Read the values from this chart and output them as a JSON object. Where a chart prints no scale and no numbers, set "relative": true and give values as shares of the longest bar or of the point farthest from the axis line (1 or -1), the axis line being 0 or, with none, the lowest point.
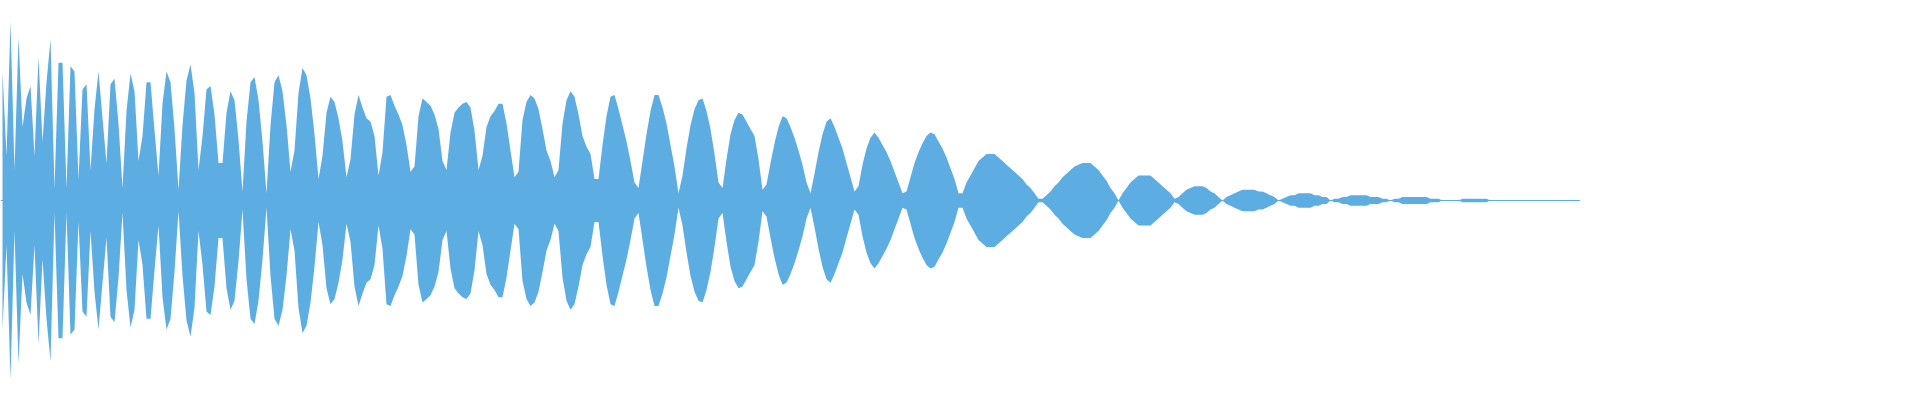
{
  "chart_data": {
    "type": "area",
    "relative": true,
    "ref_lines": [
      {
        "axis": "y",
        "value": 0,
        "color": "#5dade2"
      }
    ],
    "categories": [
      null,
      null,
      null,
      null,
      null,
      null,
      null,
      null,
      null,
      null,
      null,
      null,
      null,
      null,
      null,
      null,
      null,
      null,
      null,
      null,
      null,
      null,
      null,
      null,
      null,
      null,
      null,
      null,
      null,
      null,
      null,
      null,
      null,
      null,
      null,
      null,
      null,
      null,
      null,
      null,
      null,
      null,
      null,
      null,
      null,
      null,
      null,
      null,
      null,
      null,
      null,
      null,
      null,
      null,
      null,
      null,
      null,
      null,
      null,
      null,
      null,
      null,
      null,
      null,
      null,
      null,
      null,
      null,
      null,
      null,
      null,
      null,
      null,
      null,
      null,
      null,
      null,
      null,
      null,
      null,
      null,
      null,
      null,
      null,
      null,
      null,
      null,
      null,
      null,
      null,
      null,
      null,
      null,
      null,
      null,
      null,
      null,
      null,
      null,
      null,
      null,
      null,
      null,
      null,
      null,
      null,
      null,
      null,
      null,
      null,
      null,
      null,
      null,
      null,
      null,
      null,
      null,
      null,
      null,
      null,
      null,
      null,
      null,
      null,
      null,
      null,
      null,
      null,
      null,
      null,
      null,
      null,
      null,
      null,
      null,
      null,
      null,
      null,
      null,
      null,
      null,
      null,
      null,
      null,
      null,
      null,
      null,
      null,
      null,
      null,
      null,
      null,
      null,
      null,
      null,
      null,
      null,
      null,
      null,
      null,
      null,
      null,
      null,
      null,
      null,
      null,
      null,
      null,
      null,
      null,
      null,
      null,
      null,
      null,
      null,
      null,
      null,
      null,
      null,
      null,
      null,
      null,
      null,
      null,
      null,
      null,
      null,
      null,
      null,
      null,
      null,
      null,
      null,
      null,
      null,
      null,
      null,
      null,
      null,
      null,
      null,
      null,
      null,
      null,
      null,
      null,
      null,
      null,
      null,
      null,
      null,
      null,
      null,
      null,
      null,
      null,
      null,
      null,
      null,
      null,
      null,
      null,
      null,
      null,
      null,
      null,
      null,
      null,
      null,
      null,
      null,
      null,
      null,
      null,
      null,
      null,
      null,
      null,
      null,
      null,
      null,
      null,
      null,
      null,
      null,
      null,
      null,
      null,
      null,
      null,
      null,
      null,
      null,
      null,
      null,
      null,
      null,
      null,
      null,
      null,
      null,
      null,
      null,
      null,
      null,
      null,
      null,
      null,
      null,
      null,
      null,
      null,
      null,
      null,
      null,
      null,
      null,
      null,
      null,
      null,
      null,
      null,
      null,
      null,
      null,
      null,
      null,
      null,
      null,
      null,
      null,
      null,
      null,
      null,
      null,
      null,
      null,
      null,
      null,
      null,
      null,
      null,
      null,
      null,
      null,
      null,
      null,
      null,
      null,
      null,
      null,
      null,
      null,
      null,
      null,
      null,
      null,
      null,
      null,
      null,
      null,
      null,
      null,
      null,
      null,
      null,
      null,
      null,
      null,
      null,
      null,
      null,
      null,
      null,
      null,
      null,
      null,
      null,
      null,
      null,
      null,
      null,
      null,
      null,
      null,
      null,
      null,
      null,
      null,
      null,
      null,
      null,
      null,
      null,
      null,
      null,
      null,
      null,
      null,
      null,
      null,
      null,
      null,
      null,
      null,
      null,
      null,
      null,
      null,
      null,
      null,
      null,
      null,
      null,
      null,
      null,
      null,
      null,
      null,
      null,
      null,
      null,
      null,
      null,
      null,
      null,
      null,
      null,
      null,
      null,
      null,
      null,
      null,
      null,
      null
    ],
    "series": [
      {
        "color": "#5dade2",
        "values": [
          0.72,
          0.25,
          1.0,
          0.17,
          0.91,
          0.41,
          0.57,
          0.64,
          0.25,
          0.8,
          0.33,
          0.66,
          0.9,
          0.07,
          0.77,
          0.77,
          0.07,
          0.75,
          0.72,
          0.12,
          0.62,
          0.65,
          0.17,
          0.51,
          0.72,
          0.46,
          0.21,
          0.65,
          0.68,
          0.43,
          0.07,
          0.5,
          0.71,
          0.61,
          0.22,
          0.36,
          0.66,
          0.66,
          0.39,
          0.14,
          0.54,
          0.72,
          0.66,
          0.4,
          0.06,
          0.42,
          0.67,
          0.76,
          0.6,
          0.17,
          0.36,
          0.62,
          0.64,
          0.48,
          0.21,
          0.21,
          0.49,
          0.61,
          0.56,
          0.34,
          0.05,
          0.44,
          0.66,
          0.69,
          0.56,
          0.33,
          0.04,
          0.42,
          0.66,
          0.7,
          0.61,
          0.42,
          0.16,
          0.28,
          0.6,
          0.74,
          0.7,
          0.57,
          0.37,
          0.12,
          0.25,
          0.49,
          0.58,
          0.55,
          0.46,
          0.33,
          0.13,
          0.23,
          0.48,
          0.59,
          0.52,
          0.46,
          0.44,
          0.36,
          0.14,
          0.27,
          0.58,
          0.59,
          0.53,
          0.48,
          0.42,
          0.31,
          0.16,
          0.19,
          0.47,
          0.57,
          0.55,
          0.53,
          0.48,
          0.4,
          0.22,
          0.17,
          0.38,
          0.49,
          0.52,
          0.54,
          0.55,
          0.52,
          0.39,
          0.17,
          0.25,
          0.41,
          0.47,
          0.5,
          0.54,
          0.54,
          0.43,
          0.28,
          0.13,
          0.16,
          0.45,
          0.55,
          0.59,
          0.57,
          0.51,
          0.4,
          0.28,
          0.22,
          0.13,
          0.17,
          0.43,
          0.56,
          0.61,
          0.58,
          0.48,
          0.36,
          0.3,
          0.26,
          0.12,
          0.12,
          0.31,
          0.47,
          0.58,
          0.59,
          0.51,
          0.42,
          0.33,
          0.22,
          0.1,
          0.07,
          0.22,
          0.37,
          0.5,
          0.59,
          0.59,
          0.52,
          0.43,
          0.31,
          0.19,
          0.04,
          0.14,
          0.29,
          0.42,
          0.51,
          0.56,
          0.57,
          0.5,
          0.4,
          0.26,
          0.1,
          0.07,
          0.23,
          0.37,
          0.45,
          0.49,
          0.48,
          0.44,
          0.4,
          0.36,
          0.23,
          0.06,
          0.09,
          0.21,
          0.32,
          0.41,
          0.47,
          0.46,
          0.41,
          0.35,
          0.28,
          0.2,
          0.1,
          0.04,
          0.15,
          0.27,
          0.37,
          0.44,
          0.46,
          0.41,
          0.35,
          0.29,
          0.21,
          0.13,
          0.05,
          0.08,
          0.2,
          0.29,
          0.35,
          0.38,
          0.35,
          0.31,
          0.27,
          0.22,
          0.16,
          0.1,
          0.04,
          0.05,
          0.13,
          0.21,
          0.27,
          0.32,
          0.36,
          0.38,
          0.37,
          0.33,
          0.29,
          0.24,
          0.18,
          0.12,
          0.04,
          0.04,
          0.1,
          0.14,
          0.18,
          0.22,
          0.24,
          0.26,
          0.26,
          0.26,
          0.24,
          0.22,
          0.2,
          0.18,
          0.16,
          0.14,
          0.12,
          0.09,
          0.07,
          0.04,
          0.01,
          0.01,
          0.03,
          0.05,
          0.08,
          0.1,
          0.13,
          0.15,
          0.17,
          0.19,
          0.2,
          0.21,
          0.21,
          0.21,
          0.19,
          0.17,
          0.14,
          0.11,
          0.07,
          0.04,
          0,
          0.04,
          0.07,
          0.1,
          0.12,
          0.14,
          0.14,
          0.14,
          0.14,
          0.12,
          0.1,
          0.08,
          0.06,
          0.04,
          0.01,
          0.02,
          0.04,
          0.06,
          0.07,
          0.08,
          0.08,
          0.08,
          0.07,
          0.05,
          0.04,
          0.02,
          0,
          0.02,
          0.03,
          0.04,
          0.05,
          0.06,
          0.06,
          0.06,
          0.06,
          0.05,
          0.05,
          0.04,
          0.03,
          0.02,
          0,
          0.01,
          0.02,
          0.03,
          0.03,
          0.04,
          0.04,
          0.04,
          0.04,
          0.03,
          0.03,
          0.02,
          0.02,
          0,
          0.01,
          0.01,
          0.02,
          0.02,
          0.03,
          0.03,
          0.03,
          0.03,
          0.03,
          0.02,
          0.02,
          0.02,
          0.01,
          0.01,
          0,
          0.01,
          0.01,
          0.02,
          0.02,
          0.02,
          0.02,
          0.02,
          0.02,
          0.02,
          0.01,
          0.01,
          0.01,
          0,
          0,
          0,
          0,
          0,
          0.01,
          0.01,
          0.01,
          0.01,
          0.01,
          0.01,
          0.01,
          0,
          0,
          0,
          0,
          0,
          0,
          0,
          0,
          0,
          0,
          0,
          0,
          0,
          0,
          0,
          0,
          0,
          0,
          0,
          0,
          0,
          0,
          0
        ]
      },
      {
        "color": "#5caee2",
        "values": [
          -0.72,
          -0.25,
          -1.0,
          -0.17,
          -0.91,
          -0.41,
          -0.57,
          -0.64,
          -0.25,
          -0.8,
          -0.33,
          -0.66,
          -0.9,
          -0.07,
          -0.77,
          -0.77,
          -0.07,
          -0.75,
          -0.72,
          -0.12,
          -0.62,
          -0.65,
          -0.17,
          -0.51,
          -0.72,
          -0.46,
          -0.21,
          -0.65,
          -0.68,
          -0.43,
          -0.07,
          -0.5,
          -0.71,
          -0.61,
          -0.22,
          -0.36,
          -0.66,
          -0.66,
          -0.39,
          -0.14,
          -0.54,
          -0.72,
          -0.66,
          -0.4,
          -0.06,
          -0.42,
          -0.67,
          -0.76,
          -0.6,
          -0.17,
          -0.36,
          -0.62,
          -0.64,
          -0.48,
          -0.21,
          -0.21,
          -0.49,
          -0.61,
          -0.56,
          -0.34,
          -0.05,
          -0.44,
          -0.66,
          -0.69,
          -0.56,
          -0.33,
          -0.04,
          -0.42,
          -0.66,
          -0.7,
          -0.61,
          -0.42,
          -0.16,
          -0.28,
          -0.6,
          -0.74,
          -0.7,
          -0.57,
          -0.37,
          -0.12,
          -0.25,
          -0.49,
          -0.58,
          -0.55,
          -0.46,
          -0.33,
          -0.13,
          -0.23,
          -0.48,
          -0.59,
          -0.52,
          -0.46,
          -0.44,
          -0.36,
          -0.14,
          -0.27,
          -0.58,
          -0.59,
          -0.53,
          -0.48,
          -0.42,
          -0.31,
          -0.16,
          -0.19,
          -0.47,
          -0.57,
          -0.55,
          -0.53,
          -0.48,
          -0.4,
          -0.22,
          -0.17,
          -0.38,
          -0.49,
          -0.52,
          -0.54,
          -0.55,
          -0.52,
          -0.39,
          -0.17,
          -0.25,
          -0.41,
          -0.47,
          -0.5,
          -0.54,
          -0.54,
          -0.43,
          -0.28,
          -0.13,
          -0.16,
          -0.45,
          -0.55,
          -0.59,
          -0.57,
          -0.51,
          -0.4,
          -0.28,
          -0.22,
          -0.13,
          -0.17,
          -0.43,
          -0.56,
          -0.61,
          -0.58,
          -0.48,
          -0.36,
          -0.3,
          -0.26,
          -0.12,
          -0.12,
          -0.31,
          -0.47,
          -0.58,
          -0.59,
          -0.51,
          -0.42,
          -0.33,
          -0.22,
          -0.1,
          -0.07,
          -0.22,
          -0.37,
          -0.5,
          -0.59,
          -0.59,
          -0.52,
          -0.43,
          -0.31,
          -0.19,
          -0.04,
          -0.14,
          -0.29,
          -0.42,
          -0.51,
          -0.56,
          -0.57,
          -0.5,
          -0.4,
          -0.26,
          -0.1,
          -0.07,
          -0.23,
          -0.37,
          -0.45,
          -0.49,
          -0.48,
          -0.44,
          -0.4,
          -0.36,
          -0.23,
          -0.06,
          -0.09,
          -0.21,
          -0.32,
          -0.41,
          -0.47,
          -0.46,
          -0.41,
          -0.35,
          -0.28,
          -0.2,
          -0.1,
          -0.04,
          -0.15,
          -0.27,
          -0.37,
          -0.44,
          -0.46,
          -0.41,
          -0.35,
          -0.29,
          -0.21,
          -0.13,
          -0.05,
          -0.08,
          -0.2,
          -0.29,
          -0.35,
          -0.38,
          -0.35,
          -0.31,
          -0.27,
          -0.22,
          -0.16,
          -0.1,
          -0.04,
          -0.05,
          -0.13,
          -0.21,
          -0.27,
          -0.32,
          -0.36,
          -0.38,
          -0.37,
          -0.33,
          -0.29,
          -0.24,
          -0.18,
          -0.12,
          -0.04,
          -0.04,
          -0.1,
          -0.14,
          -0.18,
          -0.22,
          -0.24,
          -0.26,
          -0.26,
          -0.26,
          -0.24,
          -0.22,
          -0.2,
          -0.18,
          -0.16,
          -0.14,
          -0.12,
          -0.09,
          -0.07,
          -0.04,
          -0.01,
          -0.01,
          -0.03,
          -0.05,
          -0.08,
          -0.1,
          -0.13,
          -0.15,
          -0.17,
          -0.19,
          -0.2,
          -0.21,
          -0.21,
          -0.21,
          -0.19,
          -0.17,
          -0.14,
          -0.11,
          -0.07,
          -0.04,
          0,
          -0.04,
          -0.07,
          -0.1,
          -0.12,
          -0.14,
          -0.14,
          -0.14,
          -0.14,
          -0.12,
          -0.1,
          -0.08,
          -0.06,
          -0.04,
          -0.01,
          -0.02,
          -0.04,
          -0.06,
          -0.07,
          -0.08,
          -0.08,
          -0.08,
          -0.07,
          -0.05,
          -0.04,
          -0.02,
          0,
          -0.02,
          -0.03,
          -0.04,
          -0.05,
          -0.06,
          -0.06,
          -0.06,
          -0.06,
          -0.05,
          -0.05,
          -0.04,
          -0.03,
          -0.02,
          0,
          -0.01,
          -0.02,
          -0.03,
          -0.03,
          -0.04,
          -0.04,
          -0.04,
          -0.04,
          -0.03,
          -0.03,
          -0.02,
          -0.02,
          0,
          -0.01,
          -0.01,
          -0.02,
          -0.02,
          -0.03,
          -0.03,
          -0.03,
          -0.03,
          -0.03,
          -0.02,
          -0.02,
          -0.02,
          -0.01,
          -0.01,
          0,
          -0.01,
          -0.01,
          -0.02,
          -0.02,
          -0.02,
          -0.02,
          -0.02,
          -0.02,
          -0.02,
          -0.01,
          -0.01,
          -0.01,
          0,
          0,
          0,
          0,
          0,
          -0.01,
          -0.01,
          -0.01,
          -0.01,
          -0.01,
          -0.01,
          -0.01,
          0,
          0,
          0,
          0,
          0,
          0,
          0,
          0,
          0,
          0,
          0,
          0,
          0,
          0,
          0,
          0,
          0,
          0,
          0,
          0,
          0,
          0,
          0
        ]
      }
    ]
  }
}
